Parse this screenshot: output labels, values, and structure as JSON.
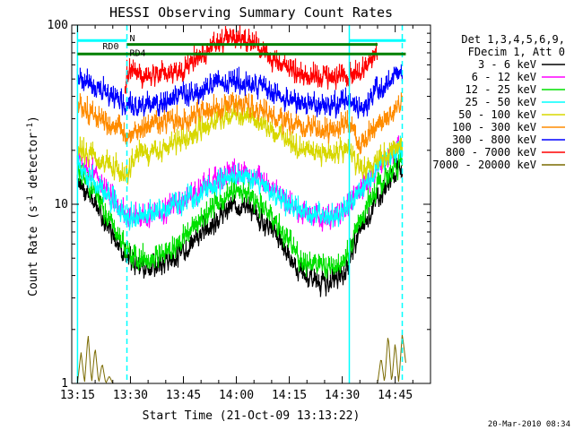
{
  "chart_data": {
    "type": "line",
    "title": "HESSI Observing Summary Count Rates",
    "xlabel": "Start Time (21-Oct-09 13:13:22)",
    "ylabel_pre": "Count Rate (s",
    "ylabel_sup": "-1",
    "ylabel_post": " detector",
    "ylabel_end": ")",
    "yscale": "log",
    "ylim": [
      1,
      100
    ],
    "xlim_minutes": [
      13.37,
      115
    ],
    "x_ticks": [
      {
        "label": "13:15",
        "m": 15
      },
      {
        "label": "13:30",
        "m": 30
      },
      {
        "label": "13:45",
        "m": 45
      },
      {
        "label": "14:00",
        "m": 60
      },
      {
        "label": "14:15",
        "m": 75
      },
      {
        "label": "14:30",
        "m": 90
      },
      {
        "label": "14:45",
        "m": 105
      }
    ],
    "y_ticks": [
      {
        "label": "1",
        "v": 1
      },
      {
        "label": "10",
        "v": 10
      },
      {
        "label": "100",
        "v": 100
      }
    ],
    "legend_header": [
      "Det 1,3,4,5,6,9,",
      "FDecim 1, Att 0"
    ],
    "legend_position": "top-right outside plot",
    "series": [
      {
        "name": "3 - 6 keV",
        "color": "#000000",
        "m": [
          15,
          17,
          20,
          23,
          25,
          28,
          29,
          32,
          38,
          45,
          52,
          58,
          60,
          63,
          68,
          72,
          75,
          78,
          82,
          84,
          88,
          89,
          90,
          92,
          95,
          98,
          100,
          103,
          105,
          107
        ],
        "v": [
          14,
          12,
          10,
          8,
          7,
          5.5,
          5,
          4.5,
          4.5,
          5.5,
          7.5,
          9.5,
          10,
          9.5,
          8,
          6.5,
          5,
          4.2,
          3.8,
          3.6,
          3.8,
          4,
          3.8,
          5,
          7,
          9,
          11,
          13,
          15,
          16
        ]
      },
      {
        "name": "6 - 12 keV",
        "color": "#ff00ff",
        "m": [
          15,
          18,
          22,
          25,
          28,
          29,
          32,
          38,
          45,
          52,
          58,
          60,
          63,
          68,
          72,
          75,
          78,
          82,
          85,
          88,
          90,
          92,
          95,
          98,
          100,
          103,
          105,
          107
        ],
        "v": [
          19,
          16,
          13,
          11,
          9,
          8.5,
          8.5,
          9,
          10.5,
          13,
          15,
          15.5,
          15,
          13.5,
          12,
          10,
          9,
          8.5,
          8.3,
          8.5,
          9,
          10,
          12,
          14,
          16,
          18,
          20,
          21
        ]
      },
      {
        "name": "12 - 25 keV",
        "color": "#00e000",
        "m": [
          15,
          17,
          20,
          23,
          25,
          28,
          29,
          32,
          38,
          45,
          52,
          58,
          60,
          63,
          68,
          72,
          75,
          78,
          82,
          85,
          88,
          90,
          92,
          95,
          98,
          100,
          103,
          105,
          107
        ],
        "v": [
          16,
          14,
          11.5,
          9,
          7.5,
          6,
          5.5,
          5,
          5,
          6.5,
          9,
          11.5,
          12,
          11.5,
          9.5,
          7.5,
          6,
          5,
          4.6,
          4.5,
          4.6,
          4.8,
          5.5,
          8,
          10.5,
          12.5,
          14.5,
          16,
          17.5
        ]
      },
      {
        "name": "25 - 50 keV",
        "color": "#00ffff",
        "m": [
          15,
          18,
          22,
          25,
          28,
          29,
          32,
          38,
          45,
          52,
          58,
          60,
          63,
          68,
          72,
          75,
          78,
          82,
          85,
          88,
          90,
          92,
          95,
          98,
          100,
          103,
          105,
          107
        ],
        "v": [
          17,
          14.5,
          12,
          10.5,
          9,
          8.5,
          8.5,
          9,
          10.5,
          12.5,
          14,
          14.5,
          14,
          12.5,
          11,
          10,
          9.3,
          8.8,
          8.6,
          8.8,
          9.2,
          10,
          12,
          14,
          16,
          18,
          20,
          21
        ]
      },
      {
        "name": "50 - 100 keV",
        "color": "#d8d800",
        "m": [
          15,
          18,
          22,
          25,
          28,
          29,
          32,
          38,
          45,
          52,
          58,
          60,
          63,
          68,
          72,
          75,
          78,
          82,
          85,
          88,
          90,
          92,
          95,
          98,
          100,
          103,
          105,
          107
        ],
        "v": [
          21,
          19,
          17,
          16,
          15,
          15,
          19,
          20,
          23,
          28,
          31,
          31.5,
          31,
          28,
          25,
          22,
          20.5,
          19.5,
          19,
          19.5,
          20,
          21,
          15,
          16,
          17.5,
          19,
          21,
          23
        ]
      },
      {
        "name": "100 - 300 keV",
        "color": "#ff8c00",
        "m": [
          15,
          18,
          22,
          25,
          28,
          29,
          32,
          38,
          45,
          52,
          58,
          60,
          63,
          68,
          72,
          75,
          78,
          82,
          85,
          88,
          90,
          92,
          95,
          98,
          100,
          103,
          105,
          107
        ],
        "v": [
          36,
          33,
          30,
          27,
          25,
          24,
          27,
          28,
          30,
          33,
          36,
          36.5,
          36,
          33,
          30,
          28,
          27,
          26.5,
          26.2,
          26.5,
          27,
          28,
          22,
          24,
          27,
          30,
          33,
          36
        ]
      },
      {
        "name": "300 - 800 keV",
        "color": "#0000ff",
        "m": [
          15,
          18,
          22,
          25,
          28,
          29,
          32,
          38,
          45,
          52,
          58,
          60,
          63,
          68,
          72,
          75,
          78,
          82,
          85,
          88,
          90,
          92,
          95,
          98,
          100,
          103,
          105,
          107
        ],
        "v": [
          50,
          47,
          43,
          40,
          37,
          36,
          35,
          36,
          40,
          45,
          48,
          48,
          47,
          44,
          40,
          38,
          37,
          36.5,
          36,
          36.5,
          37,
          38,
          33,
          38,
          44,
          48,
          53,
          56
        ]
      },
      {
        "name": "800 - 7000 keV",
        "color": "#ff0000",
        "m": [
          28.5,
          29,
          32,
          38,
          45,
          50,
          55,
          57,
          60,
          63,
          65,
          70,
          75,
          80,
          85,
          88,
          90,
          92,
          95,
          98,
          100
        ],
        "v": [
          40,
          55,
          52,
          52,
          55,
          68,
          80,
          84,
          85,
          83,
          78,
          64,
          56,
          52,
          51,
          51,
          52,
          53,
          55,
          60,
          72
        ]
      },
      {
        "name": "7000 - 20000 keV",
        "color": "#7a6a00",
        "m": [
          15,
          16,
          17,
          18,
          19,
          20,
          21,
          22,
          23,
          24,
          25,
          28,
          40,
          60,
          80,
          100,
          101,
          102,
          103,
          104,
          105,
          106,
          107,
          108
        ],
        "v": [
          1,
          1.5,
          1,
          1.9,
          1,
          1.6,
          1,
          1.3,
          1,
          1.1,
          1,
          1,
          1,
          1,
          1,
          1,
          1.4,
          1,
          1.9,
          1,
          1.7,
          1,
          1.9,
          1.3
        ]
      }
    ],
    "annotations": {
      "attenuator_line": {
        "label": "N",
        "color": "#00ffff",
        "v": 82,
        "m_segments": [
          [
            15,
            29
          ],
          [
            92,
            108
          ]
        ]
      },
      "rd0": {
        "label": "RD0",
        "color": "#008000",
        "v": 69,
        "m_range": [
          15,
          108
        ]
      },
      "rd4": {
        "label": "RD4",
        "color": "#008000",
        "v": 78,
        "m_range": [
          29,
          100
        ]
      },
      "cyan_solid_m": [
        15,
        92
      ],
      "cyan_dashed_m": [
        29,
        107
      ]
    }
  },
  "footer_stamp": "20-Mar-2010 08:34"
}
